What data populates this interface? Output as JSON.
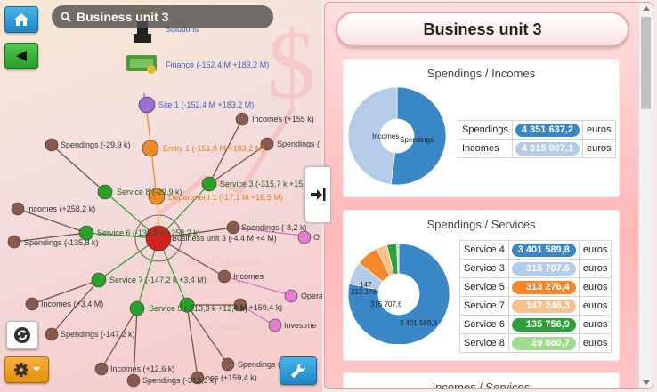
{
  "search": {
    "value": "Business unit 3"
  },
  "graph": {
    "nodes": {
      "solutions": "Solutions",
      "finance": "Finance (-152,4 M +183,2 M)",
      "site1": "Site 1 (-152,4 M +183,2 M)",
      "entity1": "Entity 1 (-151,8 M +183,2 M)",
      "department1": "Department 1 (-17,1 M +16,5 M)",
      "bu3": "Business unit 3 (-4,4 M +4 M)",
      "service3": "Service 3 (-315,7 k +15",
      "service8": "Service 8 (-29,9 k)",
      "service6": "Service 6 (-135,8 k +258,2 k)",
      "service7": "Service 7 (-147,2 k +3,4 M)",
      "service5": "Service 5 (-313,3 k +12,6 k)",
      "incomes155": "Incomes (+155 k)",
      "spendings_top_right": "Spendings (",
      "spendings299": "Spendings (-29,9 k)",
      "incomes2582": "Incomes (+258,2 k)",
      "spendings1358": "Spendings (-135,8 k)",
      "spendings82": "Spendings (-8,2 k)",
      "incomes_mid": "Incomes",
      "incomes34": "Incomes (+3,4 M)",
      "spendings1472": "Spendings (-147,2 k)",
      "incomes126": "Incomes (+12,6 k)",
      "spendings3133": "Spendings (-313,3 k)",
      "spendings_br": "Spendings (",
      "incomes1594_a": "4 M +159,4 k)",
      "incomes1594_b": "nes (+159,4 k)",
      "opera": "Opera",
      "investme": "Investme",
      "o_label": "O"
    }
  },
  "panel": {
    "title": "Business unit 3",
    "card1": {
      "title": "Spendings / Incomes",
      "rows": [
        {
          "label": "Spendings",
          "value": "4 351 637,2",
          "unit": "euros",
          "color": "#3a87c8"
        },
        {
          "label": "Incomes",
          "value": "4 015 007,1",
          "unit": "euros",
          "color": "#b4cbea"
        }
      ],
      "slice_labels": {
        "incomes": "Incomes",
        "spendings": "Spendings"
      }
    },
    "card2": {
      "title": "Spendings / Services",
      "rows": [
        {
          "label": "Service 4",
          "value": "3 401 589,8",
          "unit": "euros",
          "color": "#3a87c8"
        },
        {
          "label": "Service 3",
          "value": "315 707,6",
          "unit": "euros",
          "color": "#b4cbea"
        },
        {
          "label": "Service 5",
          "value": "313 276,4",
          "unit": "euros",
          "color": "#f5862a"
        },
        {
          "label": "Service 7",
          "value": "147 246,3",
          "unit": "euros",
          "color": "#f8c18b"
        },
        {
          "label": "Service 6",
          "value": "135 756,9",
          "unit": "euros",
          "color": "#2f9f3a"
        },
        {
          "label": "Service 8",
          "value": "29 860,7",
          "unit": "euros",
          "color": "#9fdc8f"
        }
      ],
      "slice_labels": {
        "big": "3 401 589,8",
        "s3": "315 707,6",
        "s5": "313 276",
        "s7": "147"
      }
    },
    "card3": {
      "title": "Incomes / Services"
    }
  },
  "chart_data": [
    {
      "type": "pie",
      "title": "Spendings / Incomes",
      "categories": [
        "Spendings",
        "Incomes"
      ],
      "values": [
        4351637.2,
        4015007.1
      ]
    },
    {
      "type": "pie",
      "title": "Spendings / Services",
      "categories": [
        "Service 4",
        "Service 3",
        "Service 5",
        "Service 7",
        "Service 6",
        "Service 8"
      ],
      "values": [
        3401589.8,
        315707.6,
        313276.4,
        147246.3,
        135756.9,
        29860.7
      ]
    }
  ]
}
